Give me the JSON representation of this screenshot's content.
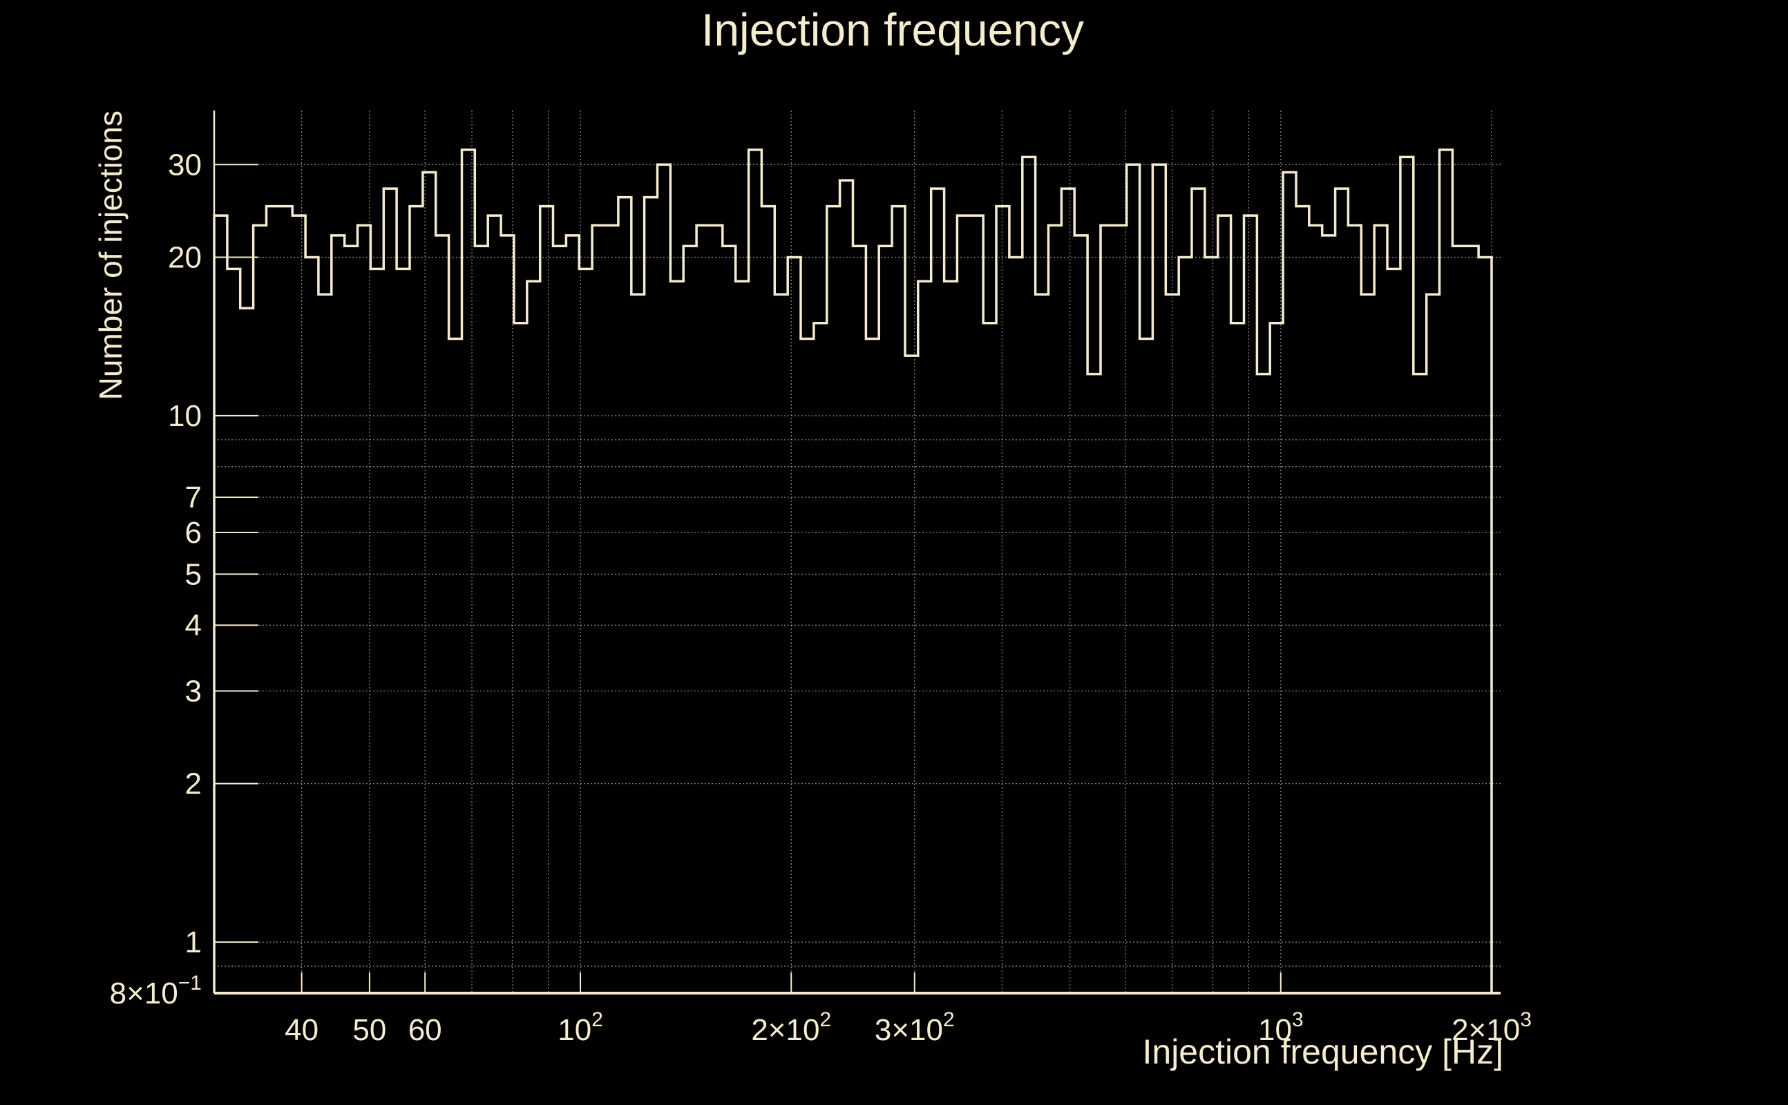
{
  "colors": {
    "background": "#000000",
    "foreground": "#f5ecd0",
    "grid": "#c8c8c8"
  },
  "chart_data": {
    "type": "histogram",
    "title": "Injection frequency",
    "xlabel": "Injection frequency [Hz]",
    "ylabel": "Number of injections",
    "x_scale": "log",
    "y_scale": "log",
    "xlim": [
      30,
      2060
    ],
    "ylim": [
      0.8,
      38
    ],
    "grid": true,
    "x_ticks": [
      {
        "value": 40,
        "label": "40"
      },
      {
        "value": 50,
        "label": "50"
      },
      {
        "value": 60,
        "label": "60"
      },
      {
        "value": 100,
        "label": "10",
        "exp": "2"
      },
      {
        "value": 200,
        "label": "2×10",
        "exp": "2"
      },
      {
        "value": 300,
        "label": "3×10",
        "exp": "2"
      },
      {
        "value": 1000,
        "label": "10",
        "exp": "3"
      },
      {
        "value": 2000,
        "label": "2×10",
        "exp": "3"
      }
    ],
    "x_minor_grid": [
      70,
      80,
      90,
      400,
      500,
      600,
      700,
      800,
      900
    ],
    "y_ticks": [
      {
        "value": 0.8,
        "label": "8×10",
        "exp": "−1"
      },
      {
        "value": 1,
        "label": "1"
      },
      {
        "value": 2,
        "label": "2"
      },
      {
        "value": 3,
        "label": "3"
      },
      {
        "value": 4,
        "label": "4"
      },
      {
        "value": 5,
        "label": "5"
      },
      {
        "value": 6,
        "label": "6"
      },
      {
        "value": 7,
        "label": "7"
      },
      {
        "value": 10,
        "label": "10"
      },
      {
        "value": 20,
        "label": "20"
      },
      {
        "value": 30,
        "label": "30"
      }
    ],
    "y_minor_grid": [
      0.9,
      8,
      9
    ],
    "bin_start": 30,
    "bin_end": 2000,
    "counts": [
      24,
      19,
      16,
      23,
      25,
      25,
      24,
      20,
      17,
      22,
      21,
      23,
      19,
      27,
      19,
      25,
      29,
      22,
      14,
      32,
      21,
      24,
      22,
      15,
      18,
      25,
      21,
      22,
      19,
      23,
      23,
      26,
      17,
      26,
      30,
      18,
      21,
      23,
      23,
      21,
      18,
      32,
      25,
      17,
      20,
      14,
      15,
      25,
      28,
      21,
      14,
      21,
      25,
      13,
      18,
      27,
      18,
      24,
      24,
      15,
      25,
      20,
      31,
      17,
      23,
      27,
      22,
      12,
      23,
      23,
      30,
      14,
      30,
      17,
      20,
      27,
      20,
      24,
      15,
      24,
      12,
      15,
      29,
      25,
      23,
      22,
      27,
      23,
      17,
      23,
      19,
      31,
      12,
      17,
      32,
      21,
      21,
      20
    ]
  }
}
